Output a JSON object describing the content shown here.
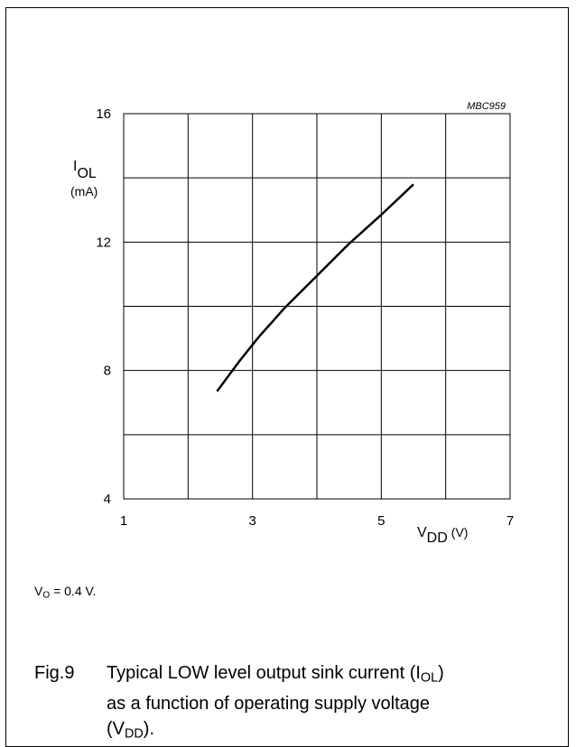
{
  "chart_data": {
    "type": "line",
    "id_label": "MBC959",
    "x_ticks": [
      1,
      3,
      5,
      7
    ],
    "y_ticks": [
      4,
      8,
      12,
      16
    ],
    "xlim": [
      1,
      7
    ],
    "ylim": [
      4,
      16
    ],
    "grid": true,
    "x_grid_step": 1,
    "y_grid_step": 2,
    "ylabel": {
      "main": "I",
      "sub": "OL",
      "unit": "(mA)"
    },
    "xlabel": {
      "main": "V",
      "sub": "DD",
      "unit": "(V)"
    },
    "series": [
      {
        "x": [
          2.45,
          2.8,
          3.1,
          3.5,
          4.0,
          4.5,
          5.0,
          5.5
        ],
        "y": [
          7.35,
          8.3,
          9.05,
          9.95,
          10.95,
          11.95,
          12.85,
          13.8
        ]
      }
    ]
  },
  "note": {
    "prefix": "V",
    "sub": "O",
    "rest": " = 0.4 V."
  },
  "caption": {
    "fig": "Fig.9",
    "p1": "Typical LOW level output sink current (I",
    "p1_sub": "OL",
    "p2": ")",
    "p3": "as a function of operating supply voltage",
    "p4": "(V",
    "p4_sub": "DD",
    "p5": ")."
  }
}
